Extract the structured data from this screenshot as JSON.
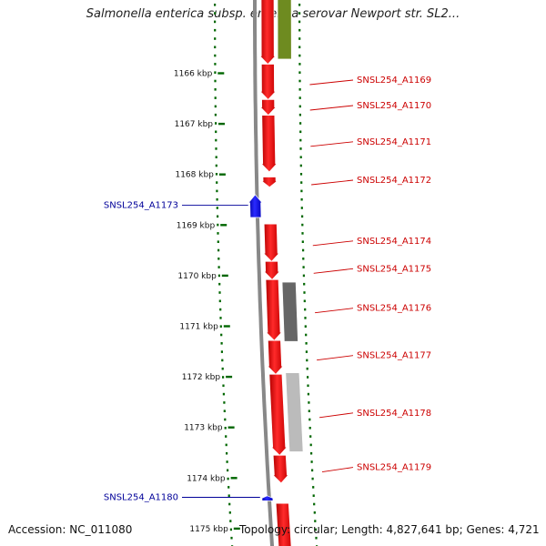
{
  "title": "Salmonella enterica subsp. enterica serovar Newport str. SL2...",
  "accession": "Accession: NC_011080",
  "topology": "Topology: circular; Length: 4,827,641 bp; Genes: 4,721",
  "ticks": [
    {
      "label": "1166 kbp",
      "value": 1166
    },
    {
      "label": "1167 kbp",
      "value": 1167
    },
    {
      "label": "1168 kbp",
      "value": 1168
    },
    {
      "label": "1169 kbp",
      "value": 1169
    },
    {
      "label": "1170 kbp",
      "value": 1170
    },
    {
      "label": "1171 kbp",
      "value": 1171
    },
    {
      "label": "1172 kbp",
      "value": 1172
    },
    {
      "label": "1173 kbp",
      "value": 1173
    },
    {
      "label": "1174 kbp",
      "value": 1174
    },
    {
      "label": "1175 kbp",
      "value": 1175
    }
  ],
  "forward_genes": [
    {
      "start": 1164.4,
      "end": 1165.82,
      "label": ""
    },
    {
      "start": 1165.82,
      "end": 1166.52,
      "label": "SNSL254_A1169"
    },
    {
      "start": 1166.52,
      "end": 1166.83,
      "label": "SNSL254_A1170"
    },
    {
      "start": 1166.83,
      "end": 1167.95,
      "label": "SNSL254_A1171"
    },
    {
      "start": 1168.05,
      "end": 1168.25,
      "label": "SNSL254_A1172"
    },
    {
      "start": 1168.98,
      "end": 1169.72,
      "label": "SNSL254_A1174"
    },
    {
      "start": 1169.72,
      "end": 1170.08,
      "label": "SNSL254_A1175"
    },
    {
      "start": 1170.08,
      "end": 1171.28,
      "label": "SNSL254_A1176"
    },
    {
      "start": 1171.28,
      "end": 1171.95,
      "label": "SNSL254_A1177"
    },
    {
      "start": 1171.95,
      "end": 1173.55,
      "label": "SNSL254_A1178"
    },
    {
      "start": 1173.55,
      "end": 1174.1,
      "label": "SNSL254_A1179"
    },
    {
      "start": 1174.5,
      "end": 1175.5,
      "label": ""
    }
  ],
  "reverse_genes": [
    {
      "start": 1168.4,
      "end": 1168.85,
      "label": "SNSL254_A1173"
    },
    {
      "start": 1174.35,
      "end": 1174.45,
      "label": "SNSL254_A1180"
    }
  ],
  "features": [
    {
      "start": 1164.4,
      "end": 1165.72,
      "color": "#6e8b20"
    },
    {
      "start": 1170.13,
      "end": 1171.3,
      "color": "#666666"
    },
    {
      "start": 1171.92,
      "end": 1173.48,
      "color": "#bbbbbb"
    }
  ],
  "colors": {
    "forward": "#ff0000",
    "reverse": "#0000ff",
    "backbone": "#888888",
    "dots": "#006600",
    "label_forward": "#cc0000",
    "label_reverse": "#000099"
  }
}
